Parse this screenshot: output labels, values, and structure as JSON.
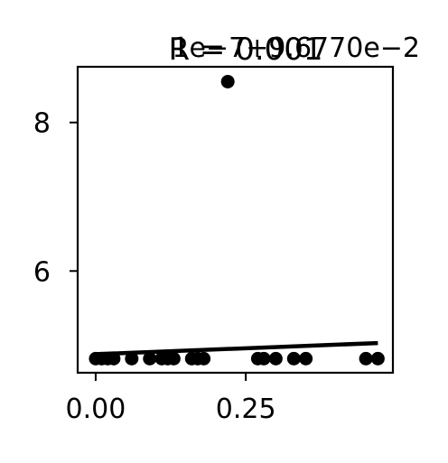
{
  "chart_data": {
    "type": "scatter",
    "title": "R = 0.001",
    "x_offset_text": "1e−7+9.6770e−2",
    "xlabel": "",
    "ylabel": "",
    "xlim": [
      -0.03,
      0.495
    ],
    "ylim": [
      4.63,
      8.75
    ],
    "x_ticks": [
      {
        "value": 0.0,
        "label": "0.00"
      },
      {
        "value": 0.25,
        "label": "0.25"
      }
    ],
    "y_ticks": [
      {
        "value": 6,
        "label": "6"
      },
      {
        "value": 8,
        "label": "8"
      }
    ],
    "grid": false,
    "legend": "none",
    "series": [
      {
        "x": [
          0.0,
          0.01,
          0.02,
          0.03,
          0.06,
          0.09,
          0.11,
          0.12,
          0.13,
          0.16,
          0.17,
          0.18,
          0.22,
          0.27,
          0.28,
          0.3,
          0.33,
          0.35,
          0.45,
          0.47
        ],
        "y": [
          4.82,
          4.82,
          4.82,
          4.82,
          4.82,
          4.82,
          4.82,
          4.82,
          4.82,
          4.82,
          4.82,
          4.82,
          8.55,
          4.82,
          4.82,
          4.82,
          4.82,
          4.82,
          4.82,
          4.82
        ]
      }
    ],
    "trendline": {
      "x": [
        0.0,
        0.47
      ],
      "y": [
        4.88,
        5.03
      ]
    },
    "colors": {
      "marker": "#000000",
      "line": "#000000"
    }
  }
}
